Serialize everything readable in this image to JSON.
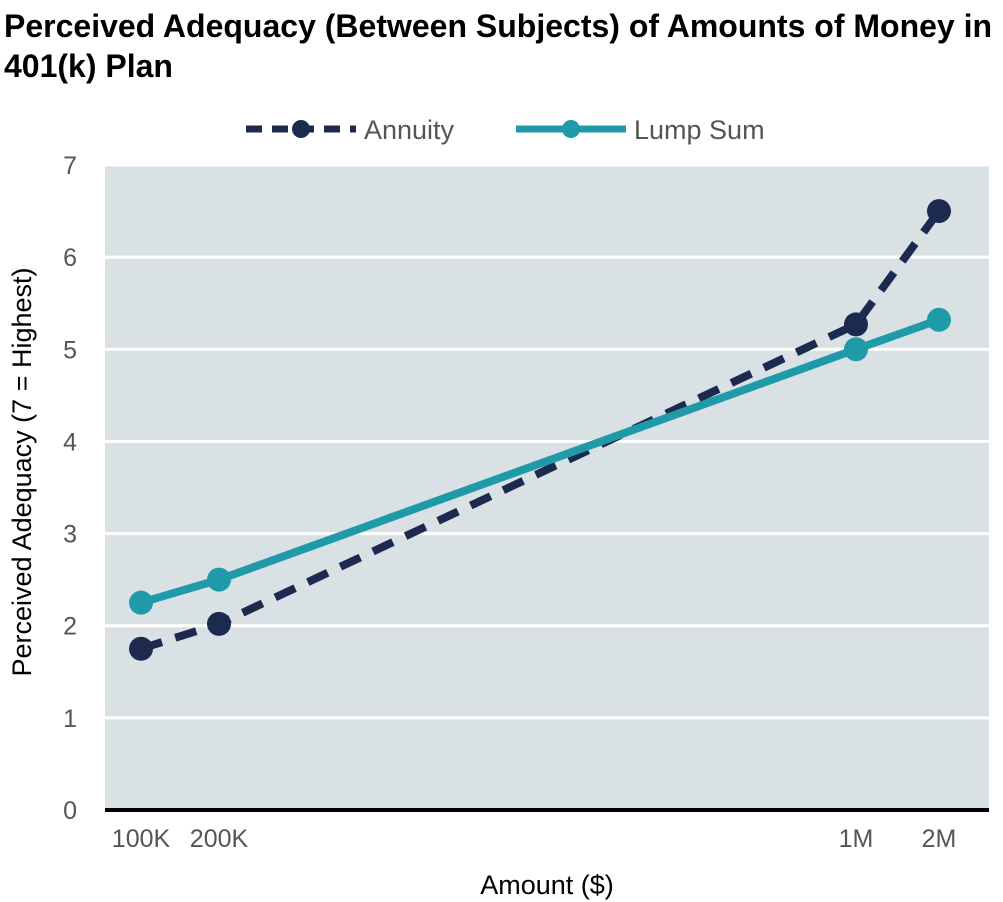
{
  "chart_data": {
    "type": "line",
    "title": "Perceived Adequacy (Between Subjects) of Amounts of Money in 401(k) Plan",
    "xlabel": "Amount ($)",
    "ylabel": "Perceived Adequacy (7 = Highest)",
    "categories": [
      "100K",
      "200K",
      "1M",
      "2M"
    ],
    "x": [
      100000,
      200000,
      1000000,
      2000000
    ],
    "ylim": [
      0,
      7
    ],
    "yticks": [
      0,
      1,
      2,
      3,
      4,
      5,
      6,
      7
    ],
    "grid": true,
    "legend": "top",
    "series": [
      {
        "name": "Annuity",
        "values": [
          1.75,
          2.02,
          5.27,
          6.5
        ],
        "color": "#1b2a4e",
        "style": "dashed"
      },
      {
        "name": "Lump Sum",
        "values": [
          2.25,
          2.5,
          5.0,
          5.32
        ],
        "color": "#1f9aa8",
        "style": "solid"
      }
    ],
    "colors": {
      "plot_background": "#d9e1e5",
      "gridline": "#ffffff",
      "baseline": "#000000"
    }
  }
}
